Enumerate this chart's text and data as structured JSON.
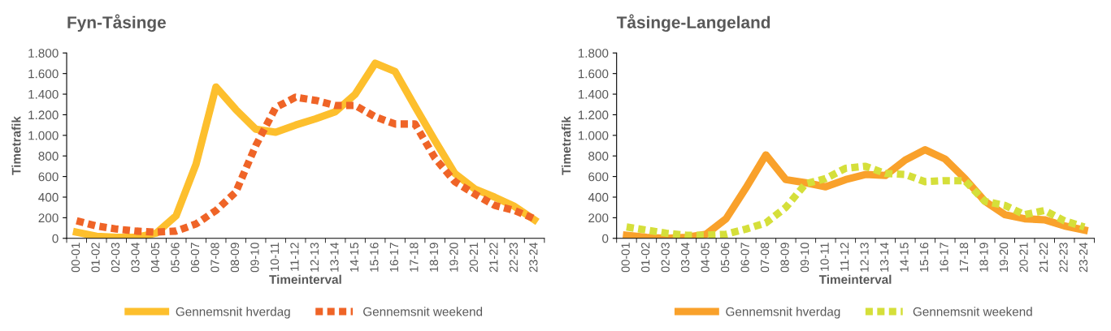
{
  "chart_data": [
    {
      "type": "line",
      "title": "Fyn-Tåsinge",
      "xlabel": "Timeinterval",
      "ylabel": "Timetrafik",
      "categories": [
        "00-01",
        "01-02",
        "02-03",
        "03-04",
        "04-05",
        "05-06",
        "06-07",
        "07-08",
        "08-09",
        "09-10",
        "10-11",
        "11-12",
        "12-13",
        "13-14",
        "14-15",
        "15-16",
        "16-17",
        "17-18",
        "18-19",
        "19-20",
        "20-21",
        "21-22",
        "22-23",
        "23-24"
      ],
      "ylim": [
        0,
        1800
      ],
      "yticks": [
        0,
        {
          "value": 200,
          "label": "200"
        },
        {
          "value": 400,
          "label": "400"
        },
        {
          "value": 600,
          "label": "600"
        },
        {
          "value": 800,
          "label": "800"
        },
        {
          "value": 1000,
          "label": "1.000"
        },
        {
          "value": 1200,
          "label": "1.200"
        },
        {
          "value": 1400,
          "label": "1.400"
        },
        {
          "value": 1600,
          "label": "1.600"
        },
        {
          "value": 1800,
          "label": "1.800"
        }
      ],
      "grid": false,
      "legend": "bottom",
      "marker": "none",
      "series": [
        {
          "name": "Gennemsnit hverdag",
          "color": "#fdbf2d",
          "line_style": "solid",
          "values": [
            60,
            20,
            10,
            10,
            50,
            220,
            720,
            1470,
            1250,
            1060,
            1030,
            1100,
            1160,
            1230,
            1400,
            1700,
            1620,
            1280,
            950,
            630,
            480,
            400,
            310,
            180
          ]
        },
        {
          "name": "Gennemsnit weekend",
          "color": "#ef6427",
          "line_style": "dashed",
          "values": [
            170,
            120,
            90,
            70,
            60,
            70,
            140,
            270,
            450,
            900,
            1270,
            1370,
            1340,
            1290,
            1290,
            1180,
            1110,
            1110,
            780,
            550,
            430,
            320,
            270,
            190
          ]
        }
      ]
    },
    {
      "type": "line",
      "title": "Tåsinge-Langeland",
      "xlabel": "Timeinterval",
      "ylabel": "Timetrafik",
      "categories": [
        "00-01",
        "01-02",
        "02-03",
        "03-04",
        "04-05",
        "05-06",
        "06-07",
        "07-08",
        "08-09",
        "09-10",
        "10-11",
        "11-12",
        "12-13",
        "13-14",
        "14-15",
        "15-16",
        "16-17",
        "17-18",
        "18-19",
        "19-20",
        "20-21",
        "21-22",
        "22-23",
        "23-24"
      ],
      "ylim": [
        0,
        1800
      ],
      "yticks": [
        0,
        {
          "value": 200,
          "label": "200"
        },
        {
          "value": 400,
          "label": "400"
        },
        {
          "value": 600,
          "label": "600"
        },
        {
          "value": 800,
          "label": "800"
        },
        {
          "value": 1000,
          "label": "1.000"
        },
        {
          "value": 1200,
          "label": "1.200"
        },
        {
          "value": 1400,
          "label": "1.400"
        },
        {
          "value": 1600,
          "label": "1.600"
        },
        {
          "value": 1800,
          "label": "1.800"
        }
      ],
      "grid": false,
      "legend": "bottom",
      "marker": "none",
      "series": [
        {
          "name": "Gennemsnit hverdag",
          "color": "#f9a12b",
          "line_style": "solid",
          "values": [
            30,
            10,
            0,
            10,
            40,
            190,
            490,
            810,
            570,
            540,
            500,
            570,
            620,
            610,
            760,
            860,
            770,
            580,
            360,
            230,
            190,
            180,
            120,
            80
          ]
        },
        {
          "name": "Gennemsnit weekend",
          "color": "#d5df3a",
          "line_style": "dashed",
          "values": [
            110,
            80,
            50,
            30,
            30,
            40,
            90,
            150,
            300,
            530,
            580,
            680,
            700,
            630,
            620,
            550,
            560,
            560,
            360,
            320,
            230,
            270,
            170,
            110
          ]
        }
      ]
    }
  ]
}
